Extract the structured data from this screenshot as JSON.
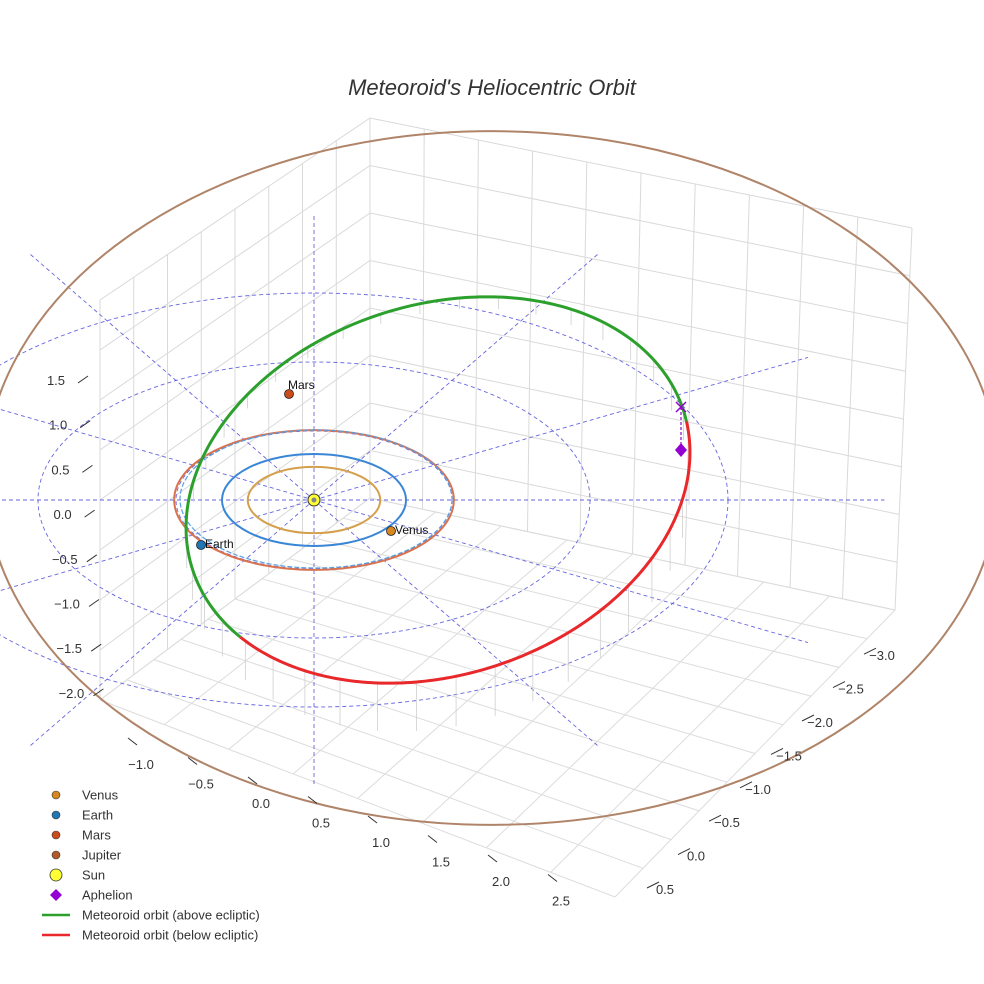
{
  "chart_data": {
    "type": "3d-line",
    "title": "Meteoroid's Heliocentric Orbit",
    "x_ticks": [
      "−1.0",
      "−0.5",
      "0.0",
      "0.5",
      "1.0",
      "1.5",
      "2.0",
      "2.5"
    ],
    "y_ticks": [
      "0.5",
      "0.0",
      "−0.5",
      "−1.0",
      "−1.5",
      "−2.0",
      "−2.5",
      "−3.0"
    ],
    "z_ticks": [
      "1.5",
      "1.0",
      "0.5",
      "0.0",
      "−0.5",
      "−1.0",
      "−1.5",
      "−2.0"
    ],
    "xlim": [
      -1.3,
      2.8
    ],
    "ylim": [
      -3.3,
      0.75
    ],
    "zlim": [
      -2.3,
      2.0
    ],
    "grid": true,
    "legend_position": "bottom-left",
    "planets": [
      {
        "name": "Venus",
        "radius_au": 0.72,
        "color": "#d4a04c",
        "marker_color": "#d7871f",
        "label": "Venus",
        "position": [
          0.72,
          -0.1
        ]
      },
      {
        "name": "Earth",
        "radius_au": 1.0,
        "color": "#3a86d6",
        "marker_color": "#2177b4",
        "label": "Earth",
        "position": [
          -0.6,
          -0.8
        ]
      },
      {
        "name": "Mars",
        "radius_au": 1.52,
        "color": "#d9724f",
        "marker_color": "#cc4b1a",
        "label": "Mars",
        "position": [
          0.1,
          1.5
        ]
      },
      {
        "name": "Jupiter",
        "radius_au": 5.2,
        "color": "#b08468",
        "marker_color": "#b05a2a"
      }
    ],
    "sun": {
      "name": "Sun",
      "color": "#ffff33",
      "position": [
        0,
        0,
        0
      ]
    },
    "aphelion": {
      "name": "Aphelion",
      "color": "#9400d3",
      "position": [
        2.6,
        -0.9,
        0.35
      ]
    },
    "meteoroid": {
      "semi_major_au": 1.9,
      "eccentricity": 0.47,
      "above_name": "Meteoroid orbit (above ecliptic)",
      "below_name": "Meteoroid orbit (below ecliptic)",
      "above_color": "#2ca02c",
      "below_color": "#e8282b"
    }
  },
  "legend": [
    {
      "label": "Venus",
      "kind": "dot",
      "color": "#d7871f"
    },
    {
      "label": "Earth",
      "kind": "dot",
      "color": "#2177b4"
    },
    {
      "label": "Mars",
      "kind": "dot",
      "color": "#cc4b1a"
    },
    {
      "label": "Jupiter",
      "kind": "dot",
      "color": "#b05a2a"
    },
    {
      "label": "Sun",
      "kind": "sun",
      "color": "#ffff33"
    },
    {
      "label": "Aphelion",
      "kind": "diamond",
      "color": "#9400d3"
    },
    {
      "label": "Meteoroid orbit (above ecliptic)",
      "kind": "line",
      "color": "#2ca02c"
    },
    {
      "label": "Meteoroid orbit (below ecliptic)",
      "kind": "line",
      "color": "#e8282b"
    }
  ]
}
